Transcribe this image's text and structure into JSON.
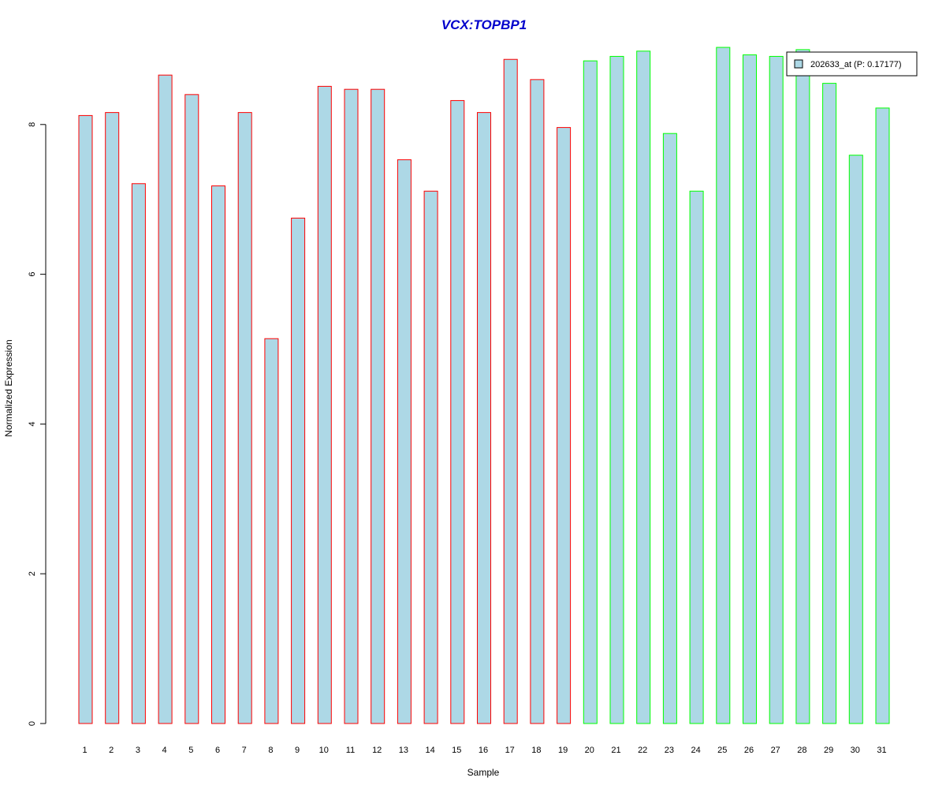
{
  "chart_data": {
    "type": "bar",
    "title": "VCX:TOPBP1",
    "xlabel": "Sample",
    "ylabel": "Normalized Expression",
    "ylim": [
      0,
      9
    ],
    "y_ticks": [
      0,
      2,
      4,
      6,
      8
    ],
    "categories": [
      "1",
      "2",
      "3",
      "4",
      "5",
      "6",
      "7",
      "8",
      "9",
      "10",
      "11",
      "12",
      "13",
      "14",
      "15",
      "16",
      "17",
      "18",
      "19",
      "20",
      "21",
      "22",
      "23",
      "24",
      "25",
      "26",
      "27",
      "28",
      "29",
      "30",
      "31"
    ],
    "series": [
      {
        "name": "202633_at (P: 0.17177)",
        "values": [
          8.12,
          8.16,
          7.21,
          8.66,
          8.4,
          7.18,
          8.16,
          5.14,
          6.75,
          8.51,
          8.47,
          8.47,
          7.53,
          7.11,
          8.32,
          8.16,
          8.87,
          8.6,
          7.96,
          8.85,
          8.91,
          8.98,
          7.88,
          7.11,
          9.03,
          8.93,
          8.91,
          9.0,
          8.55,
          7.59,
          8.22
        ]
      }
    ],
    "bar_fill": "#add8e6",
    "group_colors": {
      "group1": "#ff0000",
      "group2": "#00ff00"
    },
    "groups": [
      1,
      1,
      1,
      1,
      1,
      1,
      1,
      1,
      1,
      1,
      1,
      1,
      1,
      1,
      1,
      1,
      1,
      1,
      1,
      2,
      2,
      2,
      2,
      2,
      2,
      2,
      2,
      2,
      2,
      2,
      2
    ],
    "legend": {
      "label": "202633_at (P: 0.17177)",
      "position": "top-right"
    }
  }
}
